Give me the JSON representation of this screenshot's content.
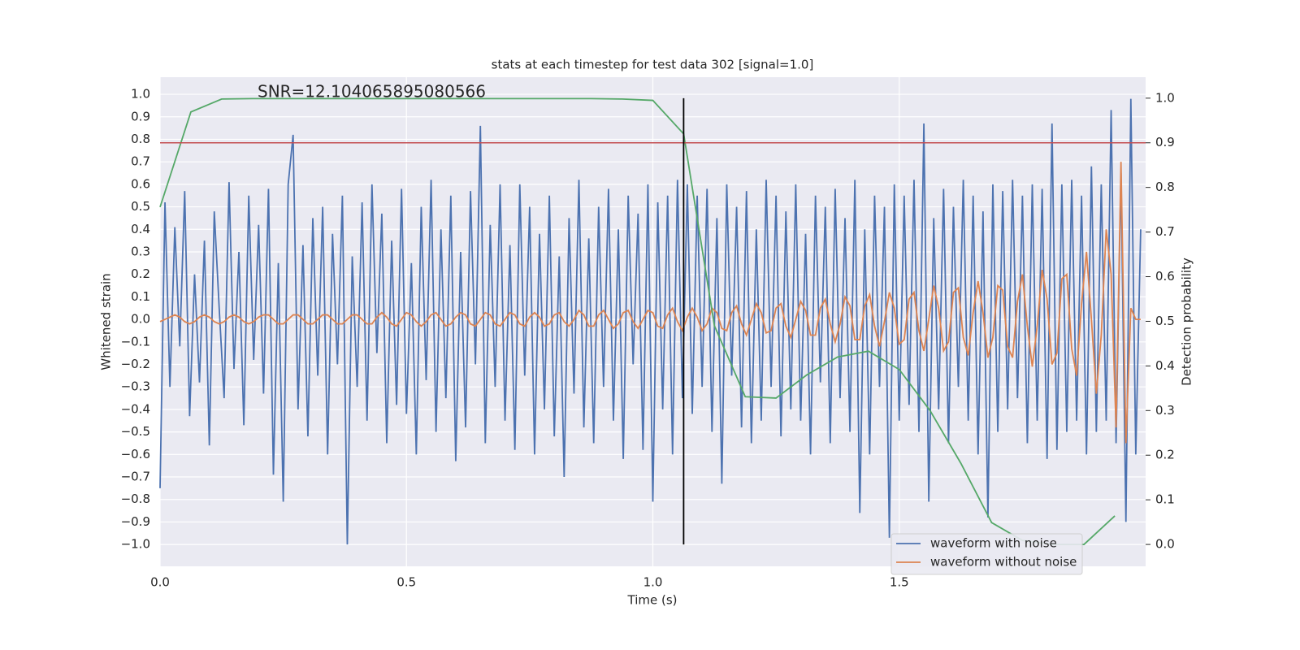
{
  "chart_data": {
    "type": "line",
    "title": "stats at each timestep for test data 302 [signal=1.0]",
    "xlabel": "Time (s)",
    "ylabel": "Whitened strain",
    "y2label": "Detection probability",
    "annotation": "SNR=12.104065895080566",
    "legend": "lower right",
    "grid": true,
    "xlim": [
      0,
      2.0
    ],
    "ylim": [
      -1.097,
      1.076
    ],
    "y2lim": [
      -0.049,
      1.047
    ],
    "xticks": [
      {
        "value": 0,
        "label": "0.0"
      },
      0.5,
      {
        "value": 1,
        "label": "1.0"
      },
      1.5
    ],
    "yticks": [
      {
        "value": -1,
        "label": "−1.0"
      },
      {
        "value": -0.9,
        "label": "−0.9"
      },
      {
        "value": -0.8,
        "label": "−0.8"
      },
      {
        "value": -0.7,
        "label": "−0.7"
      },
      {
        "value": -0.6,
        "label": "−0.6"
      },
      {
        "value": -0.5,
        "label": "−0.5"
      },
      {
        "value": -0.4,
        "label": "−0.4"
      },
      {
        "value": -0.3,
        "label": "−0.3"
      },
      {
        "value": -0.2,
        "label": "−0.2"
      },
      {
        "value": -0.1,
        "label": "−0.1"
      },
      {
        "value": 0,
        "label": "0.0"
      },
      0.1,
      0.2,
      0.3,
      0.4,
      0.5,
      0.6,
      0.7,
      0.8,
      0.9,
      {
        "value": 1,
        "label": "1.0"
      }
    ],
    "y2ticks": [
      {
        "value": 0,
        "label": "0.0"
      },
      0.1,
      0.2,
      0.3,
      0.4,
      0.5,
      0.6,
      0.7,
      0.8,
      0.9,
      {
        "value": 1,
        "label": "1.0"
      }
    ],
    "x": [
      0,
      0.01,
      0.02,
      0.03,
      0.04,
      0.05,
      0.06,
      0.07,
      0.08,
      0.09,
      0.1,
      0.11,
      0.12,
      0.13,
      0.14,
      0.15,
      0.16,
      0.17,
      0.18,
      0.19,
      0.2,
      0.21,
      0.22,
      0.23,
      0.24,
      0.25,
      0.26,
      0.27,
      0.28,
      0.29,
      0.3,
      0.31,
      0.32,
      0.33,
      0.34,
      0.35,
      0.36,
      0.37,
      0.38,
      0.39,
      0.4,
      0.41,
      0.42,
      0.43,
      0.44,
      0.45,
      0.46,
      0.47,
      0.48,
      0.49,
      0.5,
      0.51,
      0.52,
      0.53,
      0.54,
      0.55,
      0.56,
      0.57,
      0.58,
      0.59,
      0.6,
      0.61,
      0.62,
      0.63,
      0.64,
      0.65,
      0.66,
      0.67,
      0.68,
      0.69,
      0.7,
      0.71,
      0.72,
      0.73,
      0.74,
      0.75,
      0.76,
      0.77,
      0.78,
      0.79,
      0.8,
      0.81,
      0.82,
      0.83,
      0.84,
      0.85,
      0.86,
      0.87,
      0.88,
      0.89,
      0.9,
      0.91,
      0.92,
      0.93,
      0.94,
      0.95,
      0.96,
      0.97,
      0.98,
      0.99,
      1,
      1.01,
      1.02,
      1.03,
      1.04,
      1.05,
      1.06,
      1.07,
      1.08,
      1.09,
      1.1,
      1.11,
      1.12,
      1.13,
      1.14,
      1.15,
      1.16,
      1.17,
      1.18,
      1.19,
      1.2,
      1.21,
      1.22,
      1.23,
      1.24,
      1.25,
      1.26,
      1.27,
      1.28,
      1.29,
      1.3,
      1.31,
      1.32,
      1.33,
      1.34,
      1.35,
      1.36,
      1.37,
      1.38,
      1.39,
      1.4,
      1.41,
      1.42,
      1.43,
      1.44,
      1.45,
      1.46,
      1.47,
      1.48,
      1.49,
      1.5,
      1.51,
      1.52,
      1.53,
      1.54,
      1.55,
      1.56,
      1.57,
      1.58,
      1.59,
      1.6,
      1.61,
      1.62,
      1.63,
      1.64,
      1.65,
      1.66,
      1.67,
      1.68,
      1.69,
      1.7,
      1.71,
      1.72,
      1.73,
      1.74,
      1.75,
      1.76,
      1.77,
      1.78,
      1.79,
      1.8,
      1.81,
      1.82,
      1.83,
      1.84,
      1.85,
      1.86,
      1.87,
      1.88,
      1.89,
      1.9,
      1.91,
      1.92,
      1.93,
      1.94,
      1.95,
      1.96,
      1.97,
      1.98,
      1.99
    ],
    "series": [
      {
        "name": "waveform with noise",
        "color": "#4c72b0",
        "values": [
          -0.75,
          0.52,
          -0.3,
          0.41,
          -0.12,
          0.57,
          -0.43,
          0.2,
          -0.28,
          0.35,
          -0.56,
          0.48,
          0.05,
          -0.35,
          0.61,
          -0.22,
          0.3,
          -0.47,
          0.55,
          -0.18,
          0.42,
          -0.33,
          0.58,
          -0.69,
          0.25,
          -0.81,
          0.6,
          0.82,
          -0.4,
          0.33,
          -0.52,
          0.45,
          -0.25,
          0.5,
          -0.6,
          0.38,
          -0.2,
          0.55,
          -1.0,
          0.28,
          -0.3,
          0.52,
          -0.45,
          0.6,
          -0.15,
          0.47,
          -0.55,
          0.35,
          -0.38,
          0.58,
          -0.42,
          0.25,
          -0.6,
          0.5,
          -0.27,
          0.62,
          -0.5,
          0.4,
          -0.35,
          0.55,
          -0.63,
          0.3,
          -0.48,
          0.57,
          -0.2,
          0.86,
          -0.55,
          0.42,
          -0.3,
          0.6,
          -0.45,
          0.33,
          -0.58,
          0.6,
          -0.25,
          0.5,
          -0.6,
          0.38,
          -0.4,
          0.55,
          -0.52,
          0.28,
          -0.7,
          0.45,
          -0.33,
          0.62,
          -0.48,
          0.36,
          -0.55,
          0.5,
          -0.3,
          0.58,
          -0.45,
          0.4,
          -0.62,
          0.55,
          -0.2,
          0.47,
          -0.58,
          0.6,
          -0.81,
          0.52,
          -0.4,
          0.55,
          -0.6,
          0.62,
          -0.35,
          0.6,
          -0.42,
          0.55,
          -0.3,
          0.58,
          -0.5,
          0.45,
          -0.73,
          0.6,
          -0.25,
          0.5,
          -0.48,
          0.57,
          -0.55,
          0.4,
          -0.45,
          0.62,
          -0.3,
          0.55,
          -0.52,
          0.48,
          -0.4,
          0.6,
          -0.45,
          0.38,
          -0.6,
          0.55,
          -0.28,
          0.5,
          -0.55,
          0.58,
          -0.35,
          0.45,
          -0.5,
          0.62,
          -0.86,
          0.4,
          -0.6,
          0.55,
          -0.3,
          0.5,
          -0.97,
          0.6,
          -0.45,
          0.55,
          -0.38,
          0.62,
          -0.5,
          0.87,
          -0.81,
          0.45,
          -0.4,
          0.58,
          -0.55,
          0.5,
          -0.3,
          0.62,
          -0.45,
          0.55,
          -0.6,
          0.48,
          -0.88,
          0.6,
          -0.5,
          0.57,
          -0.4,
          0.62,
          -0.35,
          0.55,
          -0.55,
          0.6,
          -0.45,
          0.58,
          -0.62,
          0.87,
          -0.58,
          0.6,
          -0.5,
          0.62,
          -0.45,
          0.55,
          -0.6,
          0.68,
          -0.5,
          0.6,
          -0.45,
          0.93,
          -0.55,
          0.65,
          -0.9,
          0.98,
          -0.6,
          0.4
        ]
      },
      {
        "name": "waveform without noise",
        "color": "#dd8452",
        "values": [
          -0.01,
          0.0,
          0.01,
          0.02,
          0.01,
          -0.01,
          -0.02,
          -0.01,
          0.01,
          0.02,
          0.01,
          -0.01,
          -0.02,
          -0.01,
          0.01,
          0.02,
          0.01,
          -0.01,
          -0.02,
          -0.01,
          0.01,
          0.02,
          0.02,
          0.0,
          -0.02,
          -0.02,
          0.0,
          0.02,
          0.02,
          0.0,
          -0.02,
          -0.02,
          0.0,
          0.02,
          0.02,
          0.0,
          -0.02,
          -0.02,
          0.0,
          0.02,
          0.02,
          0.0,
          -0.02,
          -0.02,
          0.01,
          0.03,
          0.01,
          -0.02,
          -0.03,
          0.0,
          0.03,
          0.02,
          -0.01,
          -0.03,
          -0.01,
          0.02,
          0.03,
          0.0,
          -0.03,
          -0.02,
          0.01,
          0.03,
          0.02,
          -0.02,
          -0.03,
          0.0,
          0.03,
          0.02,
          -0.02,
          -0.03,
          0.0,
          0.03,
          0.02,
          -0.02,
          -0.03,
          0.01,
          0.03,
          0.01,
          -0.03,
          -0.02,
          0.02,
          0.03,
          -0.01,
          -0.03,
          0.0,
          0.04,
          0.02,
          -0.03,
          -0.03,
          0.02,
          0.04,
          0.0,
          -0.04,
          -0.02,
          0.03,
          0.04,
          -0.01,
          -0.04,
          0.0,
          0.04,
          0.03,
          -0.03,
          -0.04,
          0.02,
          0.05,
          -0.01,
          -0.05,
          0.01,
          0.05,
          0.01,
          -0.05,
          -0.02,
          0.05,
          0.03,
          -0.04,
          -0.05,
          0.03,
          0.06,
          -0.02,
          -0.07,
          0.0,
          0.07,
          0.03,
          -0.06,
          -0.05,
          0.05,
          0.07,
          -0.03,
          -0.08,
          0.0,
          0.08,
          0.04,
          -0.07,
          -0.07,
          0.05,
          0.09,
          -0.02,
          -0.1,
          -0.02,
          0.1,
          0.06,
          -0.09,
          -0.09,
          0.06,
          0.11,
          -0.03,
          -0.12,
          -0.01,
          0.12,
          0.05,
          -0.11,
          -0.09,
          0.09,
          0.12,
          -0.05,
          -0.14,
          0.0,
          0.15,
          0.05,
          -0.14,
          -0.1,
          0.12,
          0.14,
          -0.08,
          -0.16,
          0.03,
          0.17,
          0.03,
          -0.17,
          -0.08,
          0.15,
          0.13,
          -0.12,
          -0.17,
          0.08,
          0.2,
          -0.03,
          -0.21,
          -0.03,
          0.22,
          0.09,
          -0.2,
          -0.15,
          0.18,
          0.2,
          -0.13,
          -0.25,
          0.07,
          0.3,
          0.0,
          -0.33,
          -0.07,
          0.4,
          0.2,
          -0.48,
          0.7,
          -0.55,
          0.05,
          0.0,
          0.0
        ]
      }
    ],
    "probability": {
      "color": "#55a868",
      "axis": "y2",
      "x": [
        0,
        0.0625,
        0.125,
        0.1875,
        0.25,
        0.3125,
        0.375,
        0.4375,
        0.5,
        0.5625,
        0.625,
        0.6875,
        0.75,
        0.8125,
        0.875,
        0.9375,
        1,
        1.0625,
        1.125,
        1.1875,
        1.25,
        1.3125,
        1.375,
        1.4375,
        1.5,
        1.5625,
        1.625,
        1.6875,
        1.75,
        1.8125,
        1.875,
        1.9375
      ],
      "values": [
        0.756,
        0.969,
        0.998,
        0.999,
        0.999,
        0.999,
        0.999,
        0.999,
        0.999,
        0.999,
        0.999,
        0.999,
        0.999,
        0.999,
        0.999,
        0.998,
        0.995,
        0.92,
        0.49,
        0.331,
        0.328,
        0.38,
        0.42,
        0.433,
        0.392,
        0.3,
        0.182,
        0.049,
        0.009,
        0.0,
        0.0,
        0.064
      ]
    },
    "threshold": {
      "value": 0.9,
      "color": "#c44e52",
      "axis": "y2"
    },
    "marker": {
      "x": 1.0625,
      "span": [
        0,
        1.0
      ],
      "color": "#000000",
      "axis": "y2"
    }
  }
}
